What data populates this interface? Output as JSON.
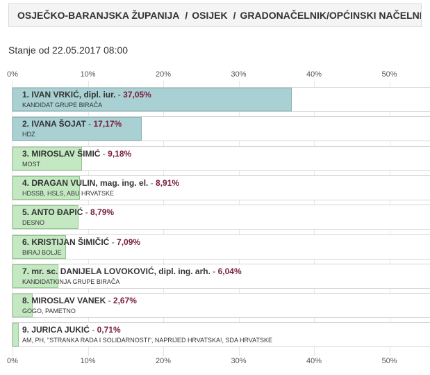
{
  "breadcrumb": {
    "county": "OSJEČKO-BARANJSKA ŽUPANIJA",
    "city": "OSIJEK",
    "office": "GRADONAČELNIK/OPĆINSKI NAČELNIK",
    "separator": "/"
  },
  "status_text": "Stanje od 22.05.2017 08:00",
  "colors": {
    "elected_bar": "#a9d0d2",
    "other_bar": "#c4e9c2",
    "percent_text": "#7a1d3d"
  },
  "chart_data": {
    "type": "bar",
    "orientation": "horizontal",
    "xlim": [
      0,
      55
    ],
    "ticks": [
      0,
      10,
      20,
      30,
      40,
      50
    ],
    "tick_labels": [
      "0%",
      "10%",
      "20%",
      "30%",
      "40%",
      "50%"
    ],
    "candidates": [
      {
        "rank": "1.",
        "name": "IVAN VRKIĆ, dipl. iur.",
        "percent_label": "37,05%",
        "value": 37.05,
        "party": "KANDIDAT GRUPE BIRAČA",
        "elected": true
      },
      {
        "rank": "2.",
        "name": "IVANA ŠOJAT",
        "percent_label": "17,17%",
        "value": 17.17,
        "party": "HDZ",
        "elected": true
      },
      {
        "rank": "3.",
        "name": "MIROSLAV ŠIMIĆ",
        "percent_label": "9,18%",
        "value": 9.18,
        "party": "MOST",
        "elected": false
      },
      {
        "rank": "4.",
        "name": "DRAGAN VULIN, mag. ing. el.",
        "percent_label": "8,91%",
        "value": 8.91,
        "party": "HDSSB, HSLS, ABU HRVATSKE",
        "elected": false
      },
      {
        "rank": "5.",
        "name": "ANTO ĐAPIĆ",
        "percent_label": "8,79%",
        "value": 8.79,
        "party": "DESNO",
        "elected": false
      },
      {
        "rank": "6.",
        "name": "KRISTIJAN ŠIMIČIĆ",
        "percent_label": "7,09%",
        "value": 7.09,
        "party": "BIRAJ BOLJE",
        "elected": false
      },
      {
        "rank": "7.",
        "name": "mr. sc. DANIJELA LOVOKOVIĆ, dipl. ing. arh.",
        "percent_label": "6,04%",
        "value": 6.04,
        "party": "KANDIDATKINJA GRUPE BIRAČA",
        "elected": false
      },
      {
        "rank": "8.",
        "name": "MIROSLAV VANEK",
        "percent_label": "2,67%",
        "value": 2.67,
        "party": "GOGO, PAMETNO",
        "elected": false
      },
      {
        "rank": "9.",
        "name": "JURICA JUKIĆ",
        "percent_label": "0,71%",
        "value": 0.71,
        "party": "AM, PH, \"STRANKA RADA I SOLIDARNOSTI\", NAPRIJED HRVATSKA!, SDA HRVATSKE",
        "elected": false
      }
    ]
  }
}
